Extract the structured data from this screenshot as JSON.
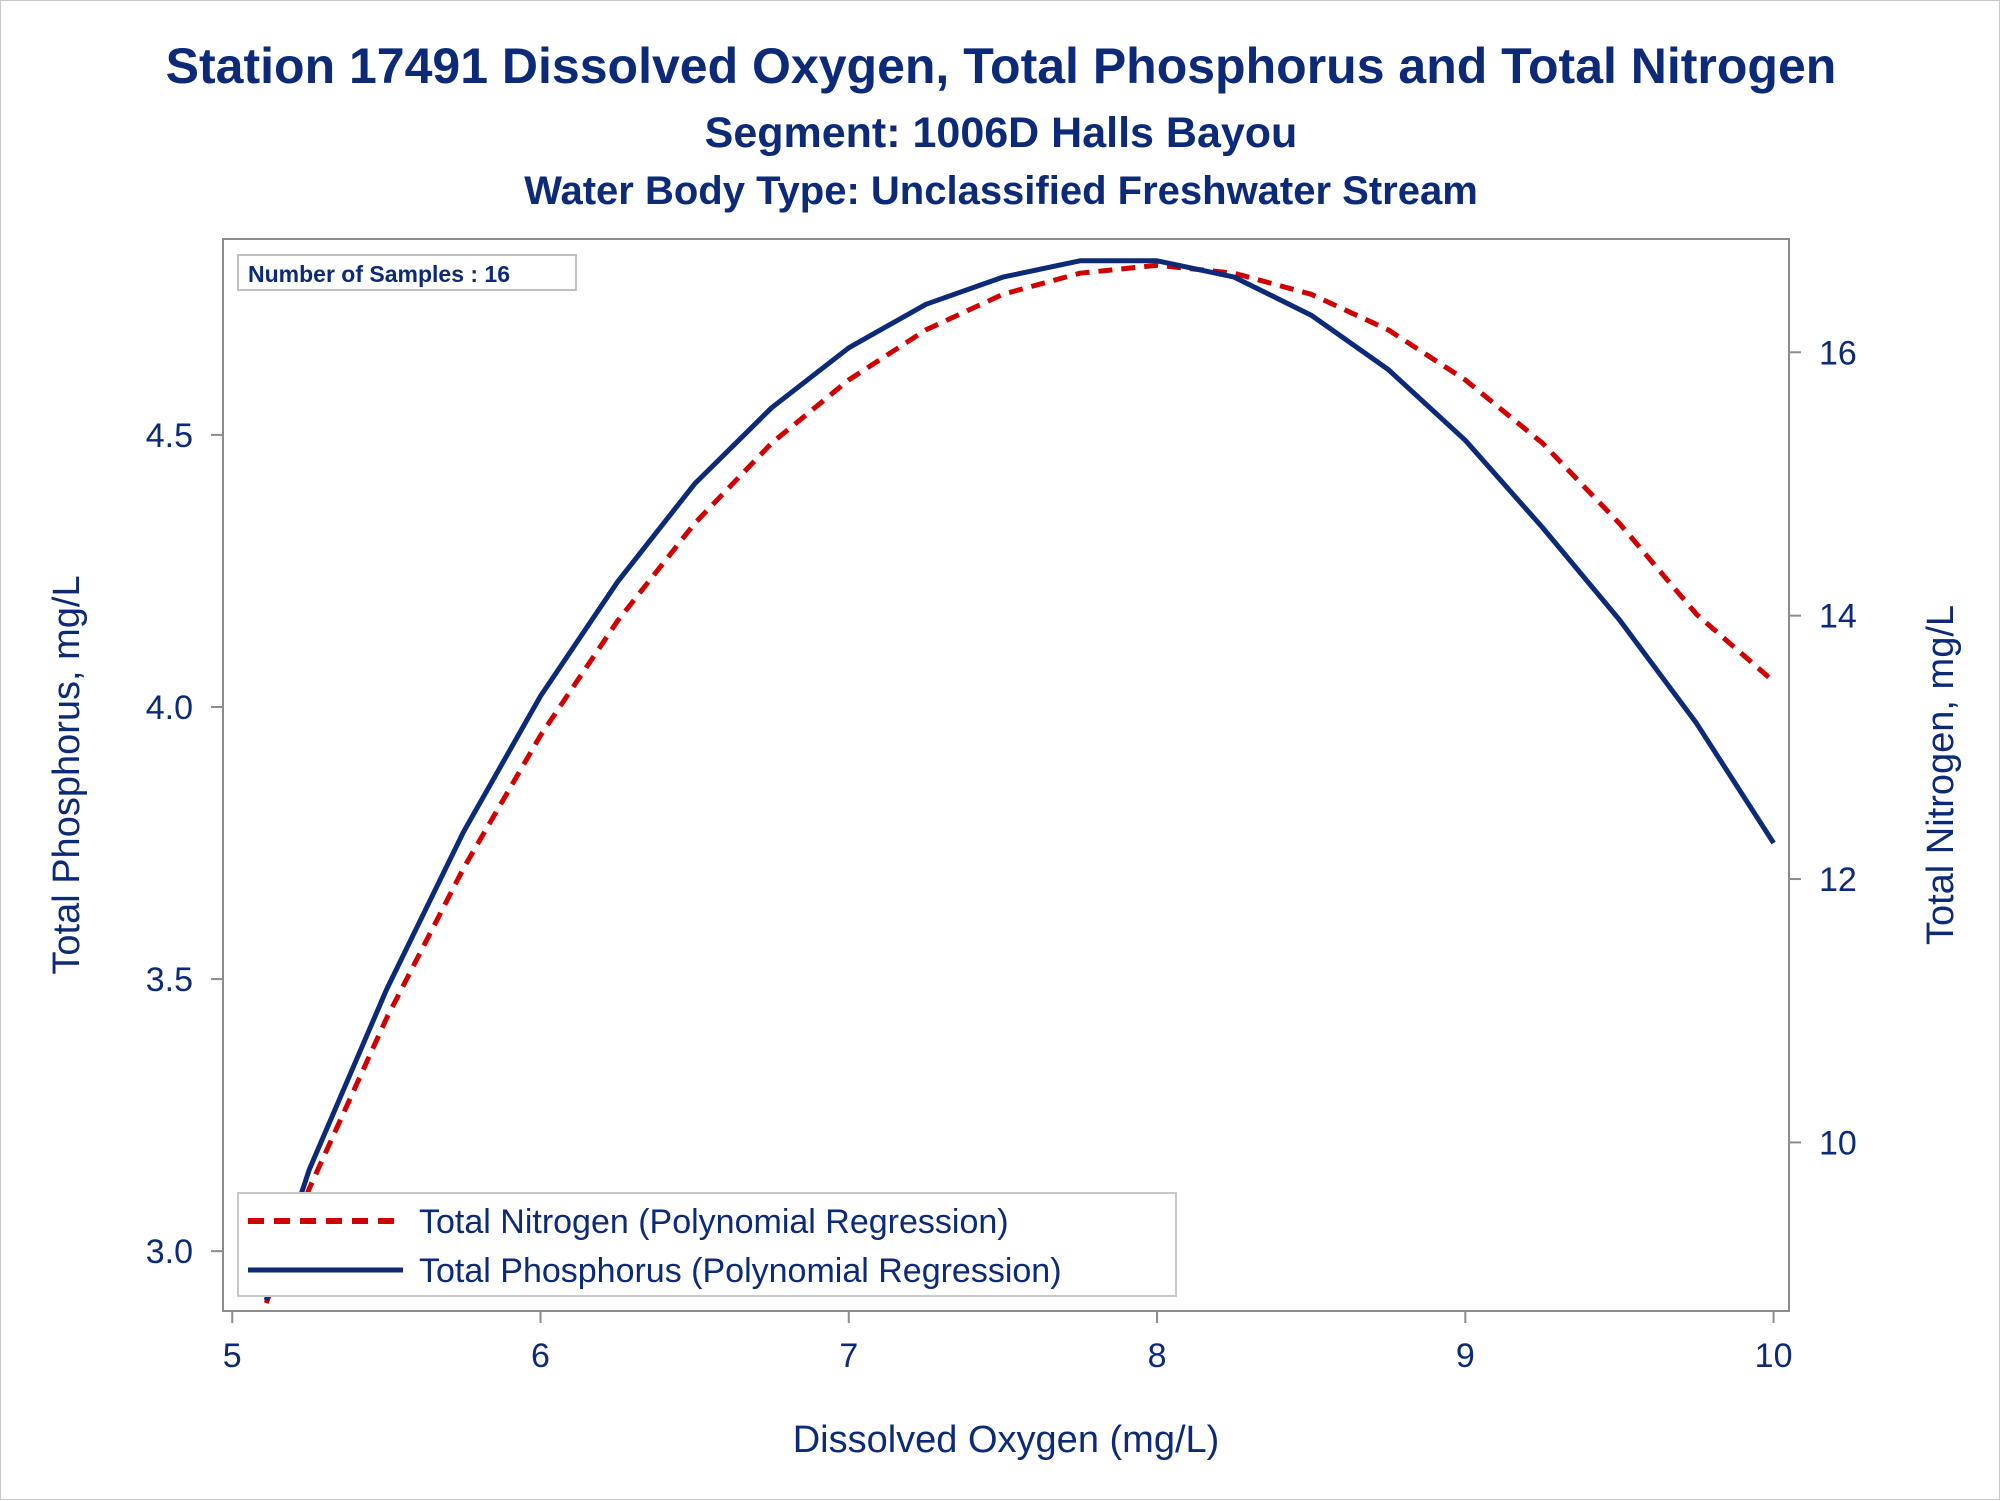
{
  "title": "Station 17491  Dissolved Oxygen, Total Phosphorus and Total Nitrogen",
  "subtitle1": "Segment: 1006D  Halls Bayou",
  "subtitle2": "Water Body Type: Unclassified Freshwater Stream",
  "inset_text": "Number of Samples : 16",
  "colors": {
    "text": "#0c2a78",
    "phosphorus": "#0c2a78",
    "nitrogen": "#d00000",
    "axis": "#8c8c8c"
  },
  "chart_data": {
    "type": "line",
    "xlabel": "Dissolved Oxygen (mg/L)",
    "ylabel": "Total Phosphorus, mg/L",
    "y2label": "Total Nitrogen, mg/L",
    "xlim": [
      4.97,
      10.05
    ],
    "ylim": [
      2.89,
      4.86
    ],
    "y2lim": [
      8.72,
      16.86
    ],
    "x_ticks": [
      5,
      6,
      7,
      8,
      9,
      10
    ],
    "y_ticks": [
      3.0,
      3.5,
      4.0,
      4.5
    ],
    "y2_ticks": [
      10,
      12,
      14,
      16
    ],
    "x_tick_labels": [
      "5",
      "6",
      "7",
      "8",
      "9",
      "10"
    ],
    "y_tick_labels": [
      "3.0",
      "3.5",
      "4.0",
      "4.5"
    ],
    "y2_tick_labels": [
      "10",
      "12",
      "14",
      "16"
    ],
    "legend_position": "bottom-left",
    "series": [
      {
        "name": "Total Nitrogen (Polynomial Regression)",
        "axis": "y2",
        "style": "dashed",
        "x": [
          5.11,
          5.25,
          5.5,
          5.75,
          6.0,
          6.25,
          6.5,
          6.75,
          7.0,
          7.25,
          7.5,
          7.75,
          8.0,
          8.25,
          8.5,
          8.75,
          9.0,
          9.25,
          9.5,
          9.75,
          10.0
        ],
        "values": [
          8.78,
          9.65,
          10.94,
          12.08,
          13.09,
          13.96,
          14.7,
          15.31,
          15.79,
          16.17,
          16.44,
          16.6,
          16.66,
          16.6,
          16.44,
          16.17,
          15.79,
          15.31,
          14.7,
          14.01,
          13.5
        ]
      },
      {
        "name": "Total Phosphorus (Polynomial Regression)",
        "axis": "y",
        "style": "solid",
        "x": [
          5.11,
          5.25,
          5.5,
          5.75,
          6.0,
          6.25,
          6.5,
          6.75,
          7.0,
          7.25,
          7.5,
          7.75,
          8.0,
          8.25,
          8.5,
          8.75,
          9.0,
          9.25,
          9.5,
          9.75,
          10.0
        ],
        "values": [
          2.91,
          3.15,
          3.48,
          3.77,
          4.02,
          4.23,
          4.41,
          4.55,
          4.66,
          4.74,
          4.79,
          4.82,
          4.82,
          4.79,
          4.72,
          4.62,
          4.49,
          4.33,
          4.16,
          3.97,
          3.75
        ]
      }
    ]
  }
}
